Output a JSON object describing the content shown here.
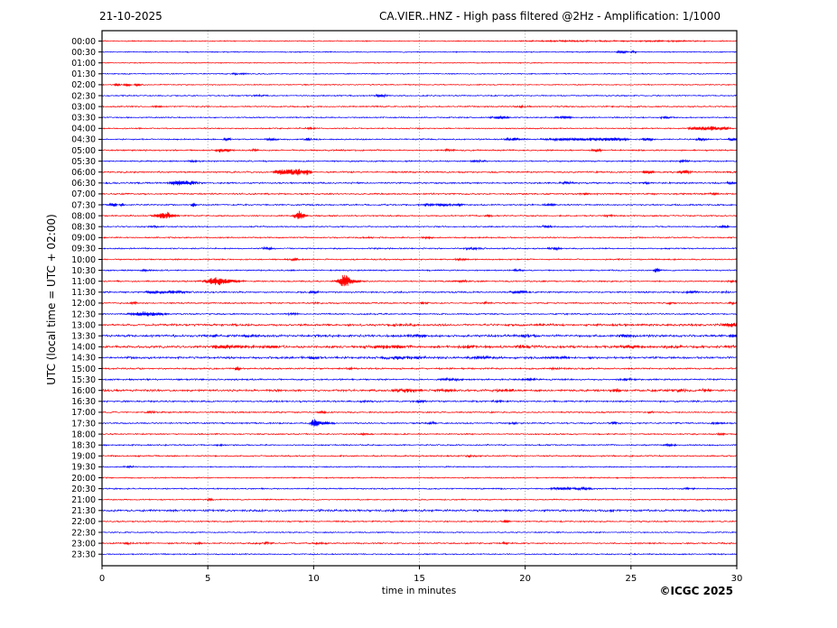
{
  "chart_data": {
    "type": "line",
    "variant": "helicorder-day-plot",
    "date_label": "21-10-2025",
    "title": "CA.VIER..HNZ - High pass filtered @2Hz - Amplification: 1/1000",
    "xlabel": "time in minutes",
    "ylabel": "UTC (local time = UTC + 02:00)",
    "copyright": "©ICGC 2025",
    "xlim": [
      0,
      30
    ],
    "x_ticks": [
      0,
      5,
      10,
      15,
      20,
      25,
      30
    ],
    "grid": "vertical-dotted-every-5-minutes",
    "grid_color": "#8a8a8a",
    "axis_color": "#000000",
    "background_color": "#ffffff",
    "trace_colors": {
      "red": "#ff0000",
      "blue": "#0000ff"
    },
    "legend_position": "none",
    "event_format": [
      "start_minute",
      "amplitude_px",
      "width_minutes"
    ],
    "rows": [
      {
        "time": "00:00",
        "color": "red",
        "noise": 0.4,
        "events": [
          [
            22.5,
            0.6,
            2.0
          ],
          [
            27.0,
            0.6,
            1.2
          ]
        ]
      },
      {
        "time": "00:30",
        "color": "blue",
        "noise": 0.4,
        "events": [
          [
            24.6,
            1.8,
            0.15
          ],
          [
            25.1,
            1.1,
            0.12
          ]
        ]
      },
      {
        "time": "01:00",
        "color": "red",
        "noise": 0.35,
        "events": []
      },
      {
        "time": "01:30",
        "color": "blue",
        "noise": 0.4,
        "events": [
          [
            6.5,
            0.8,
            0.3
          ]
        ]
      },
      {
        "time": "02:00",
        "color": "red",
        "noise": 0.4,
        "events": [
          [
            0.7,
            1.6,
            0.12
          ],
          [
            1.2,
            1.4,
            0.1
          ],
          [
            1.7,
            1.5,
            0.12
          ]
        ]
      },
      {
        "time": "02:30",
        "color": "blue",
        "noise": 0.45,
        "events": [
          [
            7.5,
            0.8,
            0.3
          ],
          [
            13.2,
            1.6,
            0.2
          ]
        ]
      },
      {
        "time": "03:00",
        "color": "red",
        "noise": 0.5,
        "events": [
          [
            2.6,
            1.2,
            0.15
          ],
          [
            19.8,
            0.9,
            0.3
          ]
        ]
      },
      {
        "time": "03:30",
        "color": "blue",
        "noise": 0.45,
        "events": [
          [
            18.8,
            1.7,
            0.3
          ],
          [
            21.9,
            1.5,
            0.25
          ],
          [
            26.7,
            1.2,
            0.2
          ]
        ]
      },
      {
        "time": "04:00",
        "color": "red",
        "noise": 0.45,
        "events": [
          [
            9.8,
            0.9,
            0.2
          ],
          [
            28.2,
            2.2,
            0.3
          ],
          [
            28.8,
            2.0,
            0.25
          ],
          [
            29.4,
            1.8,
            0.2
          ]
        ]
      },
      {
        "time": "04:30",
        "color": "blue",
        "noise": 0.5,
        "events": [
          [
            5.9,
            1.5,
            0.15
          ],
          [
            8.0,
            1.2,
            0.2
          ],
          [
            9.7,
            1.3,
            0.15
          ],
          [
            19.5,
            1.8,
            0.3
          ],
          [
            21.5,
            1.2,
            0.5
          ],
          [
            23.0,
            1.6,
            0.6
          ],
          [
            24.3,
            1.7,
            0.4
          ],
          [
            25.8,
            1.5,
            0.2
          ],
          [
            28.3,
            1.3,
            0.2
          ],
          [
            29.8,
            1.6,
            0.2
          ]
        ]
      },
      {
        "time": "05:00",
        "color": "red",
        "noise": 0.55,
        "events": [
          [
            5.6,
            2.2,
            0.12
          ],
          [
            5.95,
            2.0,
            0.1
          ],
          [
            7.2,
            1.0,
            0.15
          ],
          [
            16.4,
            0.9,
            0.3
          ],
          [
            23.4,
            1.4,
            0.2
          ]
        ]
      },
      {
        "time": "05:30",
        "color": "blue",
        "noise": 0.5,
        "events": [
          [
            4.3,
            1.0,
            0.2
          ],
          [
            17.8,
            1.5,
            0.25
          ],
          [
            27.5,
            1.1,
            0.2
          ]
        ]
      },
      {
        "time": "06:00",
        "color": "red",
        "noise": 0.6,
        "events": [
          [
            8.4,
            2.8,
            0.2
          ],
          [
            8.9,
            3.4,
            0.25
          ],
          [
            9.35,
            2.8,
            0.18
          ],
          [
            9.75,
            2.6,
            0.15
          ],
          [
            25.8,
            1.8,
            0.2
          ],
          [
            27.5,
            1.9,
            0.25
          ]
        ]
      },
      {
        "time": "06:30",
        "color": "blue",
        "noise": 0.6,
        "events": [
          [
            3.5,
            2.0,
            0.25
          ],
          [
            4.1,
            2.2,
            0.3
          ],
          [
            22.0,
            1.4,
            0.3
          ],
          [
            25.7,
            1.0,
            0.2
          ],
          [
            29.7,
            1.2,
            0.15
          ]
        ]
      },
      {
        "time": "07:00",
        "color": "red",
        "noise": 0.6,
        "events": [
          [
            23.0,
            0.8,
            0.3
          ],
          [
            28.9,
            1.4,
            0.15
          ]
        ]
      },
      {
        "time": "07:30",
        "color": "blue",
        "noise": 0.55,
        "events": [
          [
            0.55,
            2.4,
            0.12
          ],
          [
            0.95,
            2.0,
            0.1
          ],
          [
            4.35,
            2.8,
            0.1
          ],
          [
            15.4,
            1.5,
            0.2
          ],
          [
            16.1,
            1.6,
            0.2
          ],
          [
            16.9,
            1.4,
            0.15
          ],
          [
            21.2,
            1.0,
            0.2
          ]
        ]
      },
      {
        "time": "08:00",
        "color": "red",
        "noise": 0.5,
        "events": [
          [
            3.0,
            4.2,
            0.3
          ],
          [
            9.35,
            5.0,
            0.2
          ],
          [
            18.3,
            1.4,
            0.12
          ],
          [
            24.0,
            0.8,
            0.2
          ]
        ]
      },
      {
        "time": "08:30",
        "color": "blue",
        "noise": 0.5,
        "events": [
          [
            2.5,
            0.9,
            0.3
          ],
          [
            21.0,
            1.2,
            0.2
          ],
          [
            29.4,
            1.5,
            0.15
          ]
        ]
      },
      {
        "time": "09:00",
        "color": "red",
        "noise": 0.5,
        "events": [
          [
            12.5,
            0.8,
            0.2
          ],
          [
            15.4,
            1.3,
            0.15
          ]
        ]
      },
      {
        "time": "09:30",
        "color": "blue",
        "noise": 0.5,
        "events": [
          [
            7.8,
            1.2,
            0.2
          ],
          [
            17.5,
            0.9,
            0.3
          ],
          [
            21.4,
            1.3,
            0.2
          ]
        ]
      },
      {
        "time": "10:00",
        "color": "red",
        "noise": 0.5,
        "events": [
          [
            9.0,
            1.1,
            0.2
          ],
          [
            17.0,
            1.0,
            0.25
          ]
        ]
      },
      {
        "time": "10:30",
        "color": "blue",
        "noise": 0.5,
        "events": [
          [
            2.0,
            1.0,
            0.2
          ],
          [
            19.6,
            1.1,
            0.2
          ],
          [
            26.2,
            2.6,
            0.12
          ]
        ]
      },
      {
        "time": "11:00",
        "color": "red",
        "noise": 0.55,
        "events": [
          [
            5.4,
            4.5,
            0.35
          ],
          [
            6.2,
            1.5,
            0.3
          ],
          [
            11.45,
            7.5,
            0.18
          ],
          [
            11.9,
            1.8,
            0.3
          ],
          [
            17.0,
            0.9,
            0.3
          ],
          [
            29.8,
            1.3,
            0.15
          ]
        ]
      },
      {
        "time": "11:30",
        "color": "blue",
        "noise": 0.6,
        "events": [
          [
            2.3,
            1.3,
            0.2
          ],
          [
            3.3,
            1.6,
            0.5
          ],
          [
            10.0,
            1.0,
            0.2
          ],
          [
            19.8,
            1.1,
            0.4
          ],
          [
            27.9,
            1.6,
            0.2
          ],
          [
            29.5,
            1.0,
            0.2
          ]
        ]
      },
      {
        "time": "12:00",
        "color": "red",
        "noise": 0.55,
        "events": [
          [
            1.5,
            1.0,
            0.15
          ],
          [
            10.2,
            0.9,
            0.2
          ],
          [
            15.2,
            1.1,
            0.15
          ],
          [
            18.2,
            1.0,
            0.2
          ],
          [
            26.9,
            1.1,
            0.15
          ],
          [
            29.8,
            1.4,
            0.12
          ]
        ]
      },
      {
        "time": "12:30",
        "color": "blue",
        "noise": 0.55,
        "events": [
          [
            1.9,
            2.4,
            0.35
          ],
          [
            2.6,
            1.4,
            0.4
          ],
          [
            9.0,
            0.9,
            0.3
          ]
        ]
      },
      {
        "time": "13:00",
        "color": "red",
        "noise": 0.8,
        "events": [
          [
            14.0,
            1.0,
            0.5
          ],
          [
            21.0,
            0.9,
            0.5
          ],
          [
            29.7,
            2.6,
            0.3
          ]
        ]
      },
      {
        "time": "13:30",
        "color": "blue",
        "noise": 0.9,
        "events": [
          [
            5.3,
            1.5,
            0.3
          ],
          [
            7.0,
            1.3,
            0.4
          ],
          [
            14.9,
            1.2,
            0.4
          ],
          [
            20.0,
            1.4,
            0.3
          ],
          [
            24.7,
            1.5,
            0.25
          ],
          [
            29.8,
            1.5,
            0.2
          ]
        ]
      },
      {
        "time": "14:00",
        "color": "red",
        "noise": 0.9,
        "events": [
          [
            5.6,
            1.8,
            0.3
          ],
          [
            6.5,
            1.8,
            0.4
          ],
          [
            8.0,
            1.5,
            0.3
          ],
          [
            13.0,
            1.6,
            0.4
          ],
          [
            14.0,
            1.8,
            0.3
          ],
          [
            17.3,
            1.5,
            0.3
          ],
          [
            19.9,
            1.6,
            0.3
          ],
          [
            25.0,
            1.4,
            0.4
          ],
          [
            27.0,
            1.3,
            0.3
          ],
          [
            29.7,
            1.5,
            0.2
          ]
        ]
      },
      {
        "time": "14:30",
        "color": "blue",
        "noise": 0.8,
        "events": [
          [
            9.9,
            1.4,
            0.3
          ],
          [
            13.7,
            1.4,
            0.5
          ],
          [
            14.8,
            1.3,
            0.4
          ],
          [
            18.0,
            1.2,
            0.5
          ],
          [
            21.6,
            1.1,
            0.4
          ]
        ]
      },
      {
        "time": "15:00",
        "color": "red",
        "noise": 0.6,
        "events": [
          [
            6.4,
            2.6,
            0.1
          ],
          [
            11.8,
            1.0,
            0.2
          ],
          [
            21.5,
            1.0,
            0.2
          ]
        ]
      },
      {
        "time": "15:30",
        "color": "blue",
        "noise": 0.6,
        "events": [
          [
            16.5,
            1.1,
            0.4
          ],
          [
            20.3,
            1.2,
            0.25
          ],
          [
            24.8,
            1.1,
            0.3
          ]
        ]
      },
      {
        "time": "16:00",
        "color": "red",
        "noise": 0.8,
        "events": [
          [
            14.4,
            1.8,
            0.5
          ],
          [
            16.3,
            1.3,
            0.3
          ],
          [
            19.0,
            1.2,
            0.3
          ],
          [
            24.3,
            2.0,
            0.15
          ],
          [
            27.3,
            1.5,
            0.3
          ],
          [
            28.6,
            1.4,
            0.2
          ]
        ]
      },
      {
        "time": "16:30",
        "color": "blue",
        "noise": 0.6,
        "events": [
          [
            12.5,
            1.0,
            0.3
          ],
          [
            15.0,
            1.0,
            0.3
          ],
          [
            18.8,
            1.1,
            0.25
          ]
        ]
      },
      {
        "time": "17:00",
        "color": "red",
        "noise": 0.55,
        "events": [
          [
            2.3,
            1.3,
            0.12
          ],
          [
            10.5,
            0.9,
            0.2
          ],
          [
            26.0,
            0.9,
            0.2
          ]
        ]
      },
      {
        "time": "17:30",
        "color": "blue",
        "noise": 0.55,
        "events": [
          [
            10.05,
            5.0,
            0.12
          ],
          [
            10.5,
            1.8,
            0.3
          ],
          [
            15.6,
            1.1,
            0.2
          ],
          [
            19.5,
            1.0,
            0.2
          ],
          [
            24.2,
            1.1,
            0.2
          ],
          [
            29.1,
            1.4,
            0.2
          ]
        ]
      },
      {
        "time": "18:00",
        "color": "red",
        "noise": 0.5,
        "events": [
          [
            12.4,
            1.1,
            0.15
          ],
          [
            29.3,
            1.3,
            0.15
          ]
        ]
      },
      {
        "time": "18:30",
        "color": "blue",
        "noise": 0.5,
        "events": [
          [
            5.5,
            1.0,
            0.2
          ],
          [
            26.8,
            1.2,
            0.2
          ]
        ]
      },
      {
        "time": "19:00",
        "color": "red",
        "noise": 0.55,
        "events": [
          [
            17.3,
            0.9,
            0.25
          ]
        ]
      },
      {
        "time": "19:30",
        "color": "blue",
        "noise": 0.45,
        "events": [
          [
            1.3,
            0.8,
            0.2
          ]
        ]
      },
      {
        "time": "20:00",
        "color": "red",
        "noise": 0.45,
        "events": []
      },
      {
        "time": "20:30",
        "color": "blue",
        "noise": 0.5,
        "events": [
          [
            21.8,
            1.4,
            0.4
          ],
          [
            22.8,
            1.3,
            0.3
          ],
          [
            27.7,
            1.0,
            0.2
          ]
        ]
      },
      {
        "time": "21:00",
        "color": "red",
        "noise": 0.45,
        "events": [
          [
            5.1,
            1.8,
            0.1
          ]
        ]
      },
      {
        "time": "21:30",
        "color": "blue",
        "noise": 0.8,
        "events": []
      },
      {
        "time": "22:00",
        "color": "red",
        "noise": 0.5,
        "events": [
          [
            19.1,
            1.7,
            0.12
          ]
        ]
      },
      {
        "time": "22:30",
        "color": "blue",
        "noise": 0.45,
        "events": []
      },
      {
        "time": "23:00",
        "color": "red",
        "noise": 0.55,
        "events": [
          [
            1.2,
            1.0,
            0.15
          ],
          [
            4.6,
            1.2,
            0.15
          ],
          [
            7.7,
            1.0,
            0.3
          ],
          [
            10.3,
            0.9,
            0.2
          ],
          [
            19.0,
            0.9,
            0.2
          ]
        ]
      },
      {
        "time": "23:30",
        "color": "blue",
        "noise": 0.45,
        "events": []
      }
    ]
  }
}
